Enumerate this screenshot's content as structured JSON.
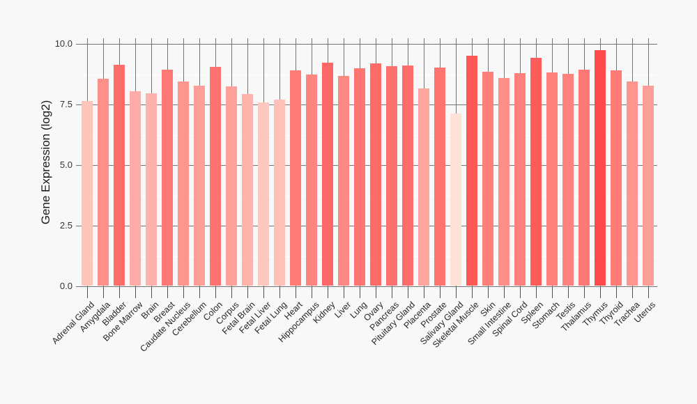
{
  "figure": {
    "background_color": "#f8f8f8",
    "major_grid_color": "#737373",
    "minor_grid_color": "#ffffff",
    "tick_color": "#4d4d4d"
  },
  "chart_data": {
    "type": "bar",
    "title": "",
    "xlabel": "",
    "ylabel": "Gene Expression (log2)",
    "legend": "none",
    "grid": "major dark-gray gridlines on both axes drawn behind bars; white minor horizontal gridlines",
    "color_encoding": "bar fill is a sequential red gradient mapped to value (light pink = low, dark red = high)",
    "ylim": [
      0,
      10.25
    ],
    "yticks": {
      "values": [
        0,
        2.5,
        5,
        7.5,
        10
      ],
      "labels": [
        "0.0",
        "2.5",
        "5.0",
        "7.5",
        "10.0"
      ]
    },
    "minor_ytick_values": [
      1.25,
      3.75,
      6.25,
      8.75
    ],
    "categories": [
      "Adrenal Gland",
      "Amygdala",
      "Bladder",
      "Bone Marrow",
      "Brain",
      "Breast",
      "Caudate Nucleus",
      "Cerebellum",
      "Colon",
      "Corpus",
      "Fetal Brain",
      "Fetal Liver",
      "Fetal Lung",
      "Heart",
      "Hippocampus",
      "Kidney",
      "Liver",
      "Lung",
      "Ovary",
      "Pancreas",
      "Pituitary Gland",
      "Placenta",
      "Prostate",
      "Salivary Gland",
      "Skeletal Muscle",
      "Skin",
      "Small Intestine",
      "Spinal Cord",
      "Spleen",
      "Stomach",
      "Testis",
      "Thalamus",
      "Thymus",
      "Thyroid",
      "Trachea",
      "Uterus"
    ],
    "values": [
      7.62,
      8.53,
      9.12,
      8.02,
      7.92,
      8.9,
      8.41,
      8.25,
      9.03,
      8.21,
      7.9,
      7.55,
      7.67,
      8.89,
      8.72,
      9.2,
      8.65,
      8.97,
      9.17,
      9.05,
      9.09,
      8.14,
      8.99,
      7.11,
      9.49,
      8.81,
      8.55,
      8.76,
      9.41,
      8.78,
      8.73,
      8.91,
      9.7,
      8.87,
      8.42,
      8.26
    ],
    "bar_colors": [
      "#ffc4ba",
      "#fe8f89",
      "#fd6d6a",
      "#feaca5",
      "#feb2aa",
      "#fe7976",
      "#fe9690",
      "#fe9f98",
      "#fe726f",
      "#fea19a",
      "#feb3ab",
      "#ffc8be",
      "#ffc1b7",
      "#fe7a76",
      "#fe847f",
      "#fd6866",
      "#fe8883",
      "#fe7572",
      "#fd6a67",
      "#fd716e",
      "#fd6e6b",
      "#fea59e",
      "#fe7471",
      "#ffe1d5",
      "#fd5756",
      "#fe7f7a",
      "#fe8e88",
      "#fe817d",
      "#fd5c5a",
      "#fe807c",
      "#fe837f",
      "#fe7975",
      "#fd4b4b",
      "#fe7b77",
      "#fe958f",
      "#fe9e98"
    ]
  }
}
